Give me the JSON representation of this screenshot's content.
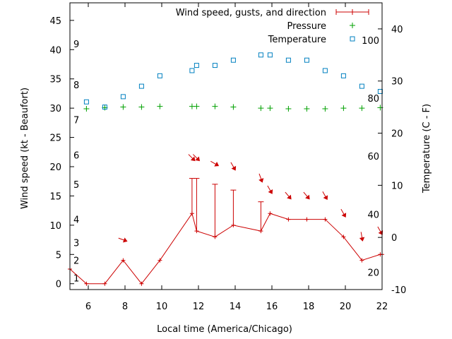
{
  "chart_data": {
    "type": "line",
    "xlabel": "Local time (America/Chicago)",
    "ylabel_left": "Wind speed (kt - Beaufort)",
    "ylabel_right": "Temperature (C - F)",
    "xlim": [
      5,
      22
    ],
    "ylim_left": [
      -1,
      48
    ],
    "ylim_right": [
      -10,
      45
    ],
    "x_ticks": [
      6,
      8,
      10,
      12,
      14,
      16,
      18,
      20,
      22
    ],
    "y_left_ticks": [
      0,
      5,
      10,
      15,
      20,
      25,
      30,
      35,
      40,
      45
    ],
    "y_right_ticks": [
      -10,
      0,
      10,
      20,
      30,
      40
    ],
    "beaufort_labels": [
      {
        "label": "1",
        "at": 1
      },
      {
        "label": "2",
        "at": 4
      },
      {
        "label": "3",
        "at": 7
      },
      {
        "label": "4",
        "at": 11
      },
      {
        "label": "5",
        "at": 17
      },
      {
        "label": "6",
        "at": 22
      },
      {
        "label": "7",
        "at": 28
      },
      {
        "label": "8",
        "at": 34
      },
      {
        "label": "9",
        "at": 41
      }
    ],
    "fahrenheit_labels": [
      {
        "label": "20",
        "at": -6.7
      },
      {
        "label": "40",
        "at": 4.4
      },
      {
        "label": "60",
        "at": 15.6
      },
      {
        "label": "80",
        "at": 26.7
      },
      {
        "label": "100",
        "at": 37.8
      }
    ],
    "legend": [
      {
        "label": "Wind speed, gusts, and direction",
        "color": "#cc0000"
      },
      {
        "label": "Pressure",
        "color": "#00a000"
      },
      {
        "label": "Temperature",
        "color": "#0080c0"
      }
    ],
    "series": [
      {
        "name": "Wind speed",
        "axis": "left",
        "color": "#cc0000",
        "x": [
          5,
          5.9,
          6.9,
          7.9,
          8.9,
          9.9,
          11.65,
          11.9,
          12.9,
          13.9,
          15.4,
          15.9,
          16.9,
          17.9,
          18.9,
          19.9,
          20.9,
          21.9,
          22
        ],
        "y": [
          2.5,
          0,
          0,
          4,
          0,
          4,
          12,
          9,
          8,
          10,
          9,
          12,
          11,
          11,
          11,
          8,
          4,
          5,
          5
        ],
        "gusts": [
          {
            "x": 11.65,
            "y": 18
          },
          {
            "x": 11.9,
            "y": 18
          },
          {
            "x": 12.9,
            "y": 17
          },
          {
            "x": 13.9,
            "y": 16
          },
          {
            "x": 15.4,
            "y": 14
          }
        ],
        "direction": [
          {
            "x": 7.9,
            "y": 7.5,
            "deg": 20
          },
          {
            "x": 11.65,
            "y": 21.5,
            "deg": 45
          },
          {
            "x": 11.9,
            "y": 21.5,
            "deg": 45
          },
          {
            "x": 12.9,
            "y": 20.5,
            "deg": 30
          },
          {
            "x": 13.9,
            "y": 20,
            "deg": 60
          },
          {
            "x": 15.4,
            "y": 18,
            "deg": 70
          },
          {
            "x": 15.9,
            "y": 16,
            "deg": 60
          },
          {
            "x": 16.9,
            "y": 15,
            "deg": 50
          },
          {
            "x": 17.9,
            "y": 15,
            "deg": 50
          },
          {
            "x": 18.9,
            "y": 15,
            "deg": 60
          },
          {
            "x": 19.9,
            "y": 12,
            "deg": 60
          },
          {
            "x": 20.9,
            "y": 8,
            "deg": 80
          },
          {
            "x": 21.9,
            "y": 9,
            "deg": 60
          }
        ]
      },
      {
        "name": "Pressure",
        "axis": "left",
        "color": "#00a000",
        "x": [
          5.9,
          6.9,
          7.9,
          8.9,
          9.9,
          11.65,
          11.9,
          12.9,
          13.9,
          15.4,
          15.9,
          16.9,
          17.9,
          18.9,
          19.9,
          20.9,
          21.9
        ],
        "y": [
          29.9,
          30.1,
          30.2,
          30.2,
          30.3,
          30.3,
          30.3,
          30.3,
          30.2,
          30,
          30,
          29.9,
          29.9,
          29.9,
          30,
          30,
          30.1
        ]
      },
      {
        "name": "Temperature",
        "axis": "right",
        "color": "#0080c0",
        "x": [
          5.9,
          6.9,
          7.9,
          8.9,
          9.9,
          11.65,
          11.9,
          12.9,
          13.9,
          15.4,
          15.9,
          16.9,
          17.9,
          18.9,
          19.9,
          20.9,
          21.9
        ],
        "y": [
          26,
          25,
          27,
          29,
          31,
          32,
          33,
          33,
          34,
          35,
          35,
          34,
          34,
          32,
          31,
          29,
          28
        ]
      }
    ]
  }
}
